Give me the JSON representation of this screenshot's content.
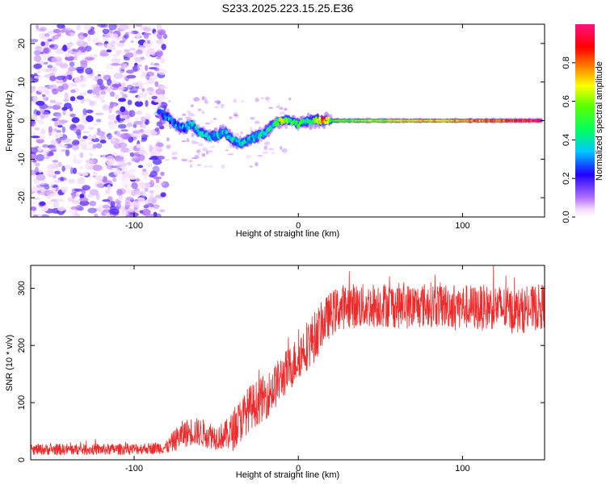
{
  "title": "S233.2025.223.15.25.E36",
  "chart_data": [
    {
      "type": "heatmap",
      "xlabel": "Height of straight line (km)",
      "ylabel": "Frequency (Hz)",
      "xlim": [
        -163,
        150
      ],
      "ylim": [
        -25,
        25
      ],
      "x_ticks": [
        -100,
        0,
        100
      ],
      "y_ticks": [
        -20,
        -10,
        0,
        10,
        20
      ],
      "noise_region_x": [
        -163,
        -85
      ],
      "signal_ridge": {
        "x": [
          -85,
          -80,
          -75,
          -70,
          -65,
          -60,
          -55,
          -50,
          -45,
          -40,
          -35,
          -30,
          -25,
          -20,
          -15,
          -10,
          -5,
          0,
          5,
          10,
          15,
          20,
          30,
          40,
          60,
          80,
          100,
          120,
          148
        ],
        "freq_hz": [
          2,
          1,
          -1,
          -2,
          -1,
          -3,
          -4,
          -4,
          -3,
          -5,
          -6,
          -5,
          -4,
          -3,
          -1,
          0,
          0,
          -1,
          0,
          0,
          0,
          0,
          0,
          0,
          0,
          0,
          0,
          0,
          0
        ],
        "amplitude": [
          0.2,
          0.25,
          0.3,
          0.3,
          0.3,
          0.35,
          0.35,
          0.35,
          0.35,
          0.35,
          0.35,
          0.35,
          0.35,
          0.4,
          0.4,
          0.7,
          0.5,
          0.5,
          0.45,
          0.5,
          0.85,
          0.5,
          0.55,
          0.6,
          0.65,
          0.7,
          0.75,
          0.8,
          0.9
        ]
      },
      "colorbar": {
        "label": "Normalized spectral amplitude",
        "range": [
          0,
          1
        ],
        "ticks": [
          "0.0",
          "0.2",
          "0.4",
          "0.6",
          "0.8"
        ]
      }
    },
    {
      "type": "line",
      "xlabel": "Height of straight line (km)",
      "ylabel": "SNR (10 * v/v)",
      "xlim": [
        -163,
        150
      ],
      "ylim": [
        0,
        340
      ],
      "x_ticks": [
        -100,
        0,
        100
      ],
      "y_ticks": [
        0,
        100,
        200,
        300
      ],
      "color": "#ee2a2a",
      "series": [
        {
          "name": "SNR",
          "x": [
            -163,
            -140,
            -120,
            -100,
            -90,
            -80,
            -75,
            -70,
            -65,
            -60,
            -55,
            -50,
            -45,
            -40,
            -35,
            -30,
            -25,
            -20,
            -15,
            -10,
            -5,
            0,
            5,
            10,
            15,
            20,
            25,
            30,
            40,
            50,
            60,
            70,
            80,
            90,
            100,
            110,
            120,
            130,
            140,
            150
          ],
          "mean": [
            18,
            18,
            18,
            19,
            20,
            22,
            35,
            45,
            50,
            48,
            45,
            40,
            42,
            50,
            70,
            90,
            100,
            110,
            125,
            145,
            160,
            180,
            200,
            215,
            240,
            255,
            265,
            270,
            268,
            272,
            270,
            268,
            272,
            270,
            268,
            265,
            268,
            260,
            262,
            270
          ],
          "spread": [
            10,
            10,
            10,
            10,
            10,
            12,
            20,
            25,
            25,
            25,
            25,
            22,
            25,
            35,
            40,
            40,
            40,
            40,
            40,
            40,
            40,
            40,
            45,
            45,
            40,
            40,
            40,
            40,
            40,
            40,
            40,
            40,
            40,
            40,
            40,
            40,
            40,
            40,
            40,
            40
          ]
        }
      ]
    }
  ]
}
